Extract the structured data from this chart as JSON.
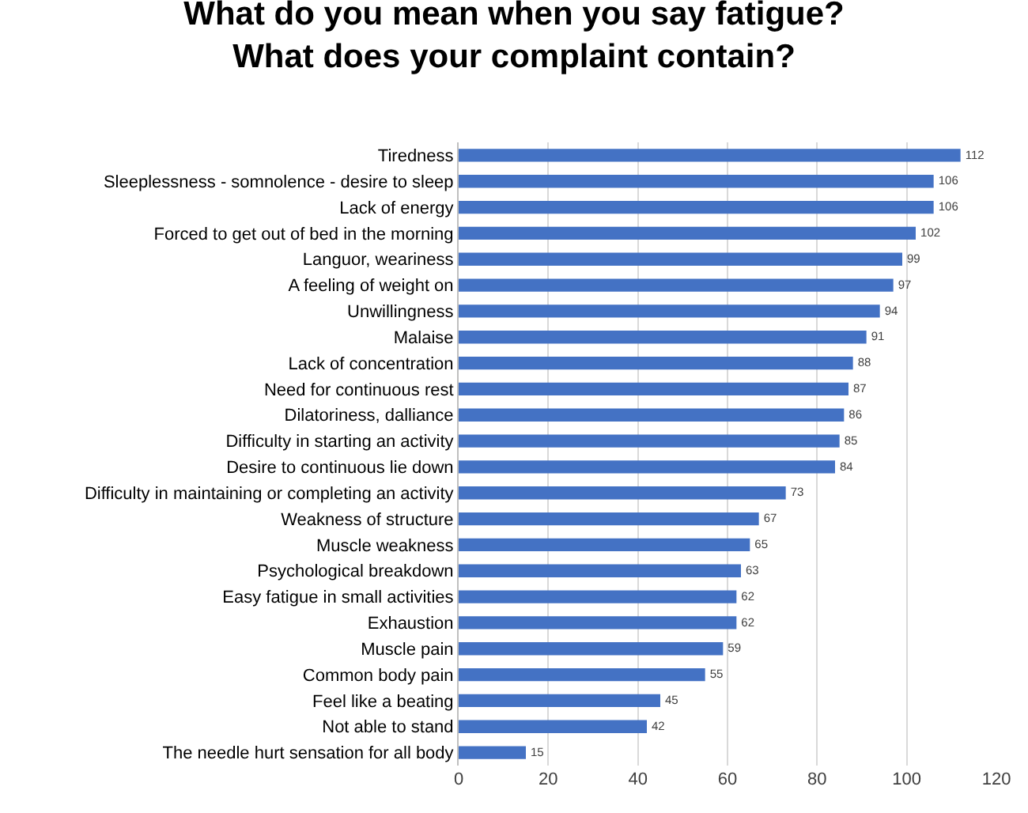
{
  "chart_data": {
    "type": "bar",
    "orientation": "horizontal",
    "title": "What do you mean when you say fatigue?\nWhat does your complaint contain?",
    "categories": [
      "Tiredness",
      "Sleeplessness - somnolence - desire to sleep",
      "Lack of energy",
      "Forced to get out of bed in the morning",
      "Languor, weariness",
      "A feeling of weight on",
      "Unwillingness",
      "Malaise",
      "Lack of concentration",
      "Need for continuous rest",
      "Dilatoriness, dalliance",
      "Difficulty in starting an activity",
      "Desire to continuous lie down",
      "Difficulty in maintaining or completing an activity",
      "Weakness of structure",
      "Muscle weakness",
      "Psychological breakdown",
      "Easy fatigue in small activities",
      "Exhaustion",
      "Muscle pain",
      "Common body pain",
      "Feel like a beating",
      "Not able to stand",
      "The needle hurt sensation for all body"
    ],
    "values": [
      112,
      106,
      106,
      102,
      99,
      97,
      94,
      91,
      88,
      87,
      86,
      85,
      84,
      73,
      67,
      65,
      63,
      62,
      62,
      59,
      55,
      45,
      42,
      15
    ],
    "color": "#4472c4",
    "xlim": [
      0,
      120
    ],
    "xticks": [
      0,
      20,
      40,
      60,
      80,
      100,
      120
    ],
    "grid": "x",
    "data_labels": true
  }
}
